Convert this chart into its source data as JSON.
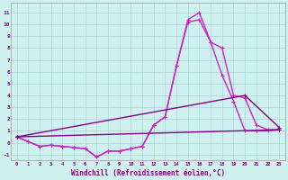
{
  "xlabel": "Windchill (Refroidissement éolien,°C)",
  "xlim": [
    -0.5,
    23.5
  ],
  "ylim": [
    -1.5,
    11.8
  ],
  "yticks": [
    -1,
    0,
    1,
    2,
    3,
    4,
    5,
    6,
    7,
    8,
    9,
    10,
    11
  ],
  "xticks": [
    0,
    1,
    2,
    3,
    4,
    5,
    6,
    7,
    8,
    9,
    10,
    11,
    12,
    13,
    14,
    15,
    16,
    17,
    18,
    19,
    20,
    21,
    22,
    23
  ],
  "background_color": "#cef0ee",
  "grid_color": "#aad4d0",
  "line1_color": "#cc22cc",
  "line2_color": "#cc22cc",
  "line3_color": "#880088",
  "line4_color": "#880088",
  "line1_x": [
    0,
    1,
    2,
    3,
    4,
    5,
    6,
    7,
    8,
    9,
    10,
    11,
    12,
    13,
    14,
    15,
    16,
    17,
    18,
    19,
    20,
    21,
    22,
    23
  ],
  "line1_y": [
    0.5,
    0.1,
    -0.3,
    -0.2,
    -0.3,
    -0.4,
    -0.5,
    -1.2,
    -0.7,
    -0.7,
    -0.5,
    -0.3,
    1.5,
    2.2,
    6.5,
    10.4,
    11.0,
    8.5,
    8.0,
    4.0,
    3.8,
    1.5,
    1.1,
    1.1
  ],
  "line2_x": [
    0,
    1,
    2,
    3,
    4,
    5,
    6,
    7,
    8,
    9,
    10,
    11,
    12,
    13,
    14,
    15,
    16,
    17,
    18,
    19,
    20,
    21,
    22,
    23
  ],
  "line2_y": [
    0.5,
    0.1,
    -0.3,
    -0.2,
    -0.3,
    -0.4,
    -0.5,
    -1.2,
    -0.7,
    -0.7,
    -0.5,
    -0.3,
    1.5,
    2.2,
    6.5,
    10.2,
    10.4,
    8.5,
    5.7,
    3.5,
    1.0,
    1.0,
    1.0,
    1.1
  ],
  "line3_x": [
    0,
    23
  ],
  "line3_y": [
    0.5,
    1.1
  ],
  "line4_x": [
    0,
    20,
    23
  ],
  "line4_y": [
    0.5,
    4.0,
    1.3
  ]
}
